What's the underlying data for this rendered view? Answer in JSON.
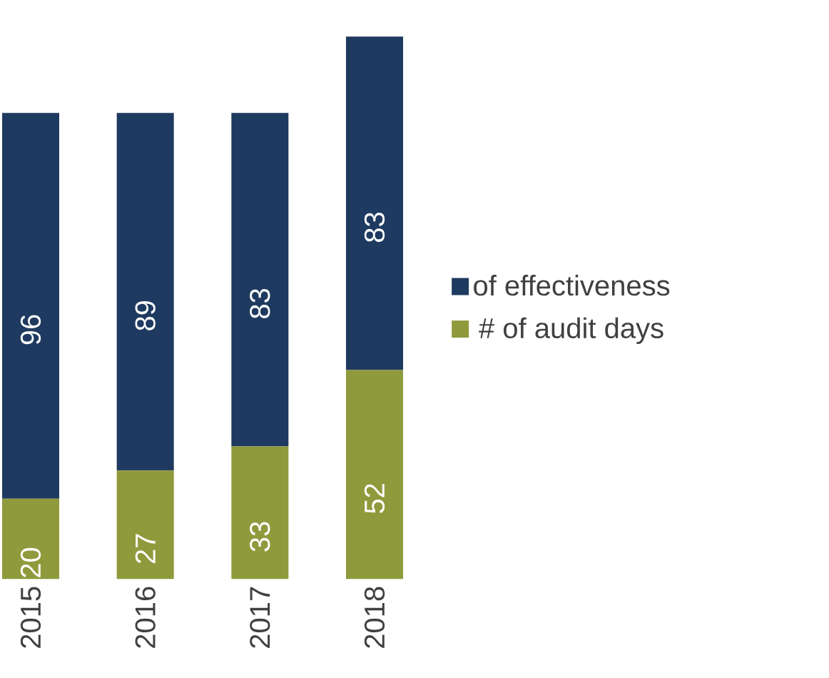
{
  "chart_data": {
    "type": "bar",
    "stacked": true,
    "data_labels": true,
    "legend": "right",
    "grid": false,
    "categories": [
      "2015",
      "2016",
      "2017",
      "2018"
    ],
    "series": [
      {
        "name": "# of audit days",
        "color": "#8f9a3c",
        "values": [
          20,
          27,
          33,
          52
        ]
      },
      {
        "name": "of effectiveness",
        "color": "#1f3a60",
        "values": [
          96,
          89,
          83,
          83
        ]
      }
    ]
  }
}
